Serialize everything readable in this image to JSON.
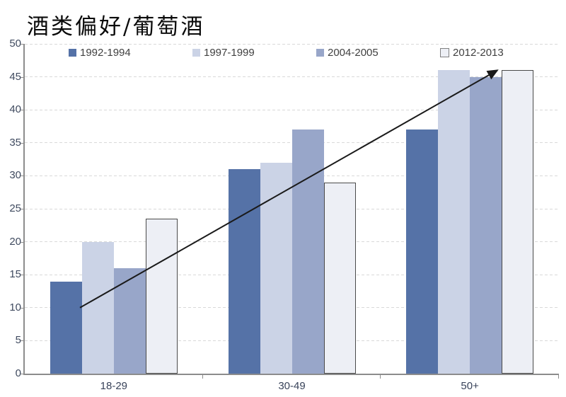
{
  "page": {
    "title": "酒类偏好/葡萄酒"
  },
  "chart_data": {
    "type": "bar",
    "title": "酒类偏好/葡萄酒",
    "categories": [
      "18-29",
      "30-49",
      "50+"
    ],
    "series": [
      {
        "name": "1992-1994",
        "color": "#5572A7",
        "values": [
          14,
          31,
          37
        ]
      },
      {
        "name": "1997-1999",
        "color": "#CBD3E6",
        "values": [
          20,
          32,
          46
        ]
      },
      {
        "name": "2004-2005",
        "color": "#98A6C9",
        "values": [
          16,
          37,
          45
        ]
      },
      {
        "name": "2012-2013",
        "color": "#EDEFF5",
        "border_color": "#4A4A4A",
        "legend_border_color": "#808080",
        "values": [
          23.5,
          29,
          46
        ]
      }
    ],
    "ylim": [
      0,
      50
    ],
    "ytick_step": 5,
    "yticks": [
      0,
      5,
      10,
      15,
      20,
      25,
      30,
      35,
      40,
      45,
      50
    ],
    "xlabel": "",
    "ylabel": "",
    "grid": "horizontal-dashed",
    "legend_position": "top",
    "trend_arrow": {
      "x1_frac": 0.1033,
      "y1_value": 10,
      "x2_frac": 0.8848,
      "y2_value": 46,
      "color": "#1A1A1A"
    },
    "colors": {
      "axis": "#8C8C8C",
      "gridline": "#D9D9D9",
      "tick_label": "#3F4A5F",
      "legend_text": "#404040"
    }
  }
}
